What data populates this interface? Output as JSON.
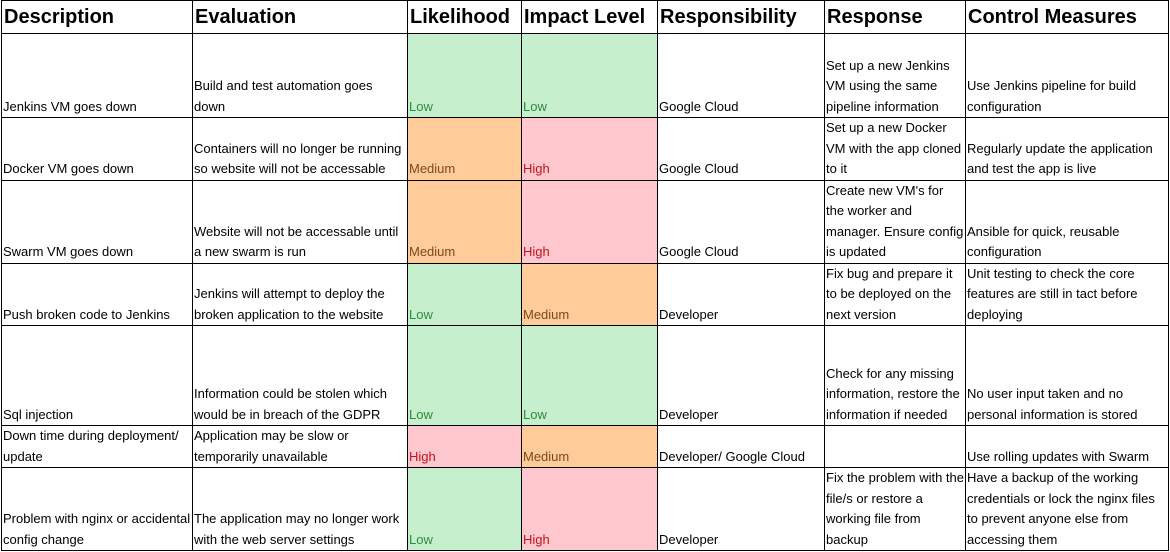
{
  "headers": [
    "Description",
    "Evaluation",
    "Likelihood",
    "Impact Level",
    "Responsibility",
    "Response",
    "Control Measures"
  ],
  "rows": [
    {
      "description": "Jenkins VM goes down",
      "evaluation": "Build and test automation goes down",
      "likelihood": "Low",
      "impact": "Low",
      "responsibility": "Google Cloud",
      "response": "Set up a new Jenkins VM using the same pipeline information",
      "control": "Use Jenkins pipeline for build configuration"
    },
    {
      "description": "Docker VM goes down",
      "evaluation": "Containers will no longer be running so website will not be accessable",
      "likelihood": "Medium",
      "impact": "High",
      "responsibility": "Google Cloud",
      "response": "Set up a new Docker  VM with the app cloned to it",
      "control": "Regularly update the application and test the app is live"
    },
    {
      "description": "Swarm VM goes down",
      "evaluation": "Website will not be accessable until a new swarm is run",
      "likelihood": "Medium",
      "impact": "High",
      "responsibility": "Google Cloud",
      "response": "Create new VM's for the worker and manager. Ensure config is updated",
      "control": "Ansible for quick, reusable configuration"
    },
    {
      "description": "Push broken code to Jenkins",
      "evaluation": "Jenkins will attempt to deploy the broken application to the website",
      "likelihood": "Low",
      "impact": "Medium",
      "responsibility": "Developer",
      "response": "Fix bug and prepare it to be deployed on the next version",
      "control": "Unit testing to check the core features are still in tact before deploying"
    },
    {
      "description": "Sql injection",
      "evaluation": "Information could be stolen which would be in breach of the GDPR",
      "likelihood": "Low",
      "impact": "Low",
      "responsibility": "Developer",
      "response": "Check for any missing information, restore the information if needed",
      "control": "No user input taken and no personal information is stored"
    },
    {
      "description": "Down time during deployment/ update",
      "evaluation": "Application may be slow or temporarily unavailable",
      "likelihood": "High",
      "impact": "Medium",
      "responsibility": "Developer/ Google Cloud",
      "response": "",
      "control": "Use rolling updates with Swarm"
    },
    {
      "description": "Problem with nginx or accidental config change",
      "evaluation": "The application may no longer work with the web server settings",
      "likelihood": "Low",
      "impact": "High",
      "responsibility": "Developer",
      "response": "Fix the problem with the file/s or restore a working file from backup",
      "control": "Have a backup of the working credentials or lock the nginx files to prevent anyone else from accessing them"
    }
  ],
  "level_colors": {
    "Low": {
      "fill": "#c6efce",
      "text": "#2f8a3b"
    },
    "Medium": {
      "fill": "#ffcc99",
      "text": "#7a4a1f"
    },
    "High": {
      "fill": "#ffc7ce",
      "text": "#c0141e"
    }
  }
}
